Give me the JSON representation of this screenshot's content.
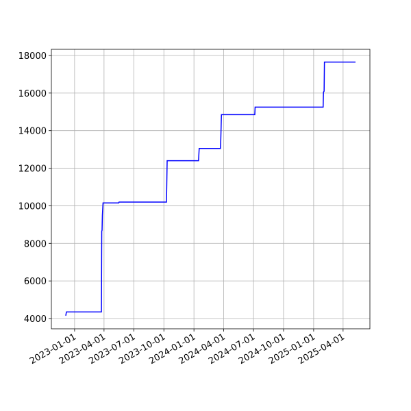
{
  "chart_data": {
    "type": "line",
    "x": [
      "2022-12-05",
      "2022-12-07",
      "2023-03-24",
      "2023-03-25",
      "2023-03-26",
      "2023-03-27",
      "2023-03-29",
      "2023-05-16",
      "2023-05-17",
      "2023-10-09",
      "2023-10-11",
      "2024-01-15",
      "2024-01-17",
      "2024-03-22",
      "2024-03-23",
      "2024-03-25",
      "2024-07-05",
      "2024-07-06",
      "2025-01-30",
      "2025-01-31",
      "2025-02-02",
      "2025-02-03",
      "2025-05-09"
    ],
    "series": [
      {
        "color": "#0000ff",
        "values": [
          4150,
          4350,
          4350,
          8650,
          8700,
          9500,
          10150,
          10150,
          10200,
          10200,
          12400,
          12400,
          13050,
          13050,
          13500,
          14850,
          14850,
          15250,
          15250,
          16050,
          16100,
          17650,
          17650
        ]
      }
    ],
    "xlim": [
      "2022-10-22",
      "2025-06-22"
    ],
    "xticks": [
      "2023-01-01",
      "2023-04-01",
      "2023-07-01",
      "2023-10-01",
      "2024-01-01",
      "2024-04-01",
      "2024-07-01",
      "2024-10-01",
      "2025-01-01",
      "2025-04-01"
    ],
    "ylim": [
      3453,
      18328
    ],
    "yticks": [
      4000,
      6000,
      8000,
      10000,
      12000,
      14000,
      16000,
      18000
    ],
    "grid": true
  }
}
